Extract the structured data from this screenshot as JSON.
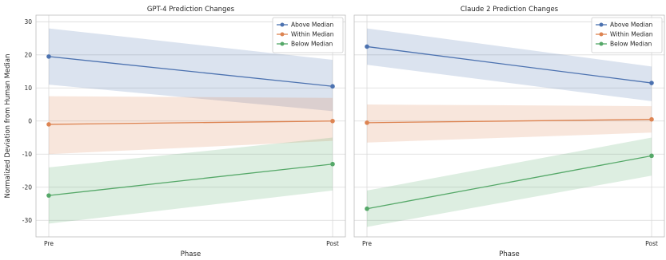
{
  "figure": {
    "ylabel": "Normalized Deviation from Human Median",
    "shared_ylim": [
      -35,
      32
    ]
  },
  "chart_data": [
    {
      "type": "line",
      "title": "GPT-4 Prediction Changes",
      "xlabel": "Phase",
      "ylabel": "Normalized Deviation from Human Median",
      "categories": [
        "Pre",
        "Post"
      ],
      "ylim": [
        -35,
        32
      ],
      "yticks": [
        -30,
        -20,
        -10,
        0,
        10,
        20,
        30
      ],
      "grid": true,
      "legend_position": "top-right",
      "series": [
        {
          "name": "Above Median",
          "color": "#4c72b0",
          "values": [
            19.5,
            10.5
          ],
          "ci_lower": [
            11,
            3
          ],
          "ci_upper": [
            28,
            18.5
          ]
        },
        {
          "name": "Within Median",
          "color": "#dd8452",
          "values": [
            -1,
            0
          ],
          "ci_lower": [
            -10,
            -6
          ],
          "ci_upper": [
            7.5,
            7
          ]
        },
        {
          "name": "Below Median",
          "color": "#55a868",
          "values": [
            -22.5,
            -13
          ],
          "ci_lower": [
            -31,
            -21
          ],
          "ci_upper": [
            -14,
            -5
          ]
        }
      ]
    },
    {
      "type": "line",
      "title": "Claude 2 Prediction Changes",
      "xlabel": "Phase",
      "ylabel": "",
      "categories": [
        "Pre",
        "Post"
      ],
      "ylim": [
        -35,
        32
      ],
      "yticks": [
        -30,
        -20,
        -10,
        0,
        10,
        20,
        30
      ],
      "grid": true,
      "legend_position": "top-right",
      "series": [
        {
          "name": "Above Median",
          "color": "#4c72b0",
          "values": [
            22.5,
            11.5
          ],
          "ci_lower": [
            17,
            6
          ],
          "ci_upper": [
            28,
            16.5
          ]
        },
        {
          "name": "Within Median",
          "color": "#dd8452",
          "values": [
            -0.5,
            0.5
          ],
          "ci_lower": [
            -6.5,
            -3.5
          ],
          "ci_upper": [
            5,
            4.5
          ]
        },
        {
          "name": "Below Median",
          "color": "#55a868",
          "values": [
            -26.5,
            -10.5
          ],
          "ci_lower": [
            -32,
            -16.5
          ],
          "ci_upper": [
            -21,
            -5
          ]
        }
      ]
    }
  ]
}
